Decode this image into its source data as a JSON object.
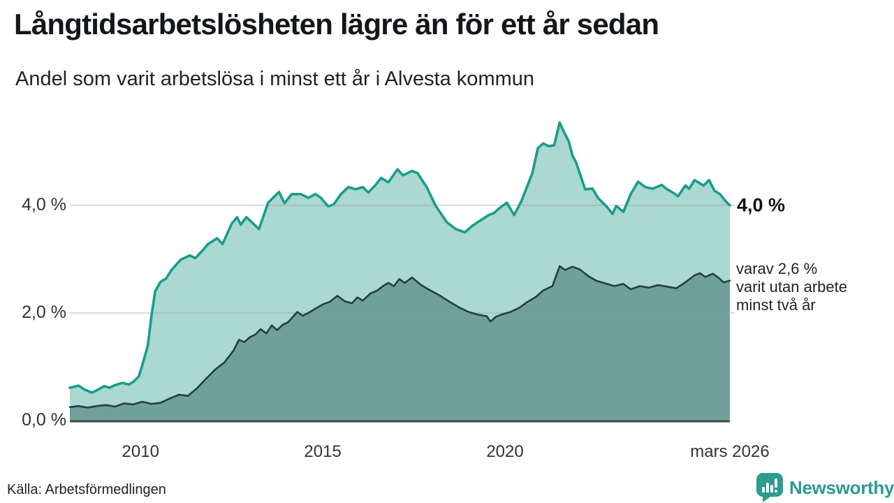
{
  "header": {
    "title": "Långtidsarbetslösheten lägre än för ett år sedan",
    "subtitle": "Andel som varit arbetslösa i minst ett år i Alvesta kommun"
  },
  "annotations": {
    "end_value_label": "4,0 %",
    "secondary_line1": "varav 2,6 %",
    "secondary_line2": "varit utan arbete",
    "secondary_line3": "minst två år"
  },
  "footer": {
    "source": "Källa: Arbetsförmedlingen",
    "brand_name": "Newsworthy",
    "brand_icon": "newsworthy-speech-bubble-bar-chart-icon"
  },
  "colors": {
    "series1_line": "#1a9c8c",
    "series1_fill": "#abd8d1",
    "series2_line": "#21403f",
    "series2_fill": "#6fa099",
    "gridline": "#9a9a9a",
    "baseline": "#3c4747",
    "brand_teal": "#2b9c8e",
    "text_dark": "#111111"
  },
  "chart_data": {
    "type": "area",
    "title": "Långtidsarbetslösheten lägre än för ett år sedan",
    "subtitle": "Andel som varit arbetslösa i minst ett år i Alvesta kommun",
    "unit": "percent",
    "source": "Arbetsförmedlingen",
    "x_axis": {
      "range_years": [
        2008.06,
        2026.17
      ],
      "ticks": [
        {
          "t": 2010,
          "label": "2010"
        },
        {
          "t": 2015,
          "label": "2015"
        },
        {
          "t": 2020,
          "label": "2020"
        },
        {
          "t": 2026.17,
          "label": "mars 2026"
        }
      ]
    },
    "y_axis": {
      "ticks": [
        {
          "v": 4,
          "label": "4,0 %"
        },
        {
          "v": 2,
          "label": "2,0 %"
        },
        {
          "v": 0,
          "label": "0,0 %"
        }
      ],
      "grid_values": [
        2,
        4
      ],
      "range": [
        0,
        5.6
      ]
    },
    "series": [
      {
        "name": "Andel arbetslösa minst ett år",
        "end_value": 4.0,
        "points": [
          [
            2008.06,
            0.61
          ],
          [
            2008.3,
            0.65
          ],
          [
            2008.45,
            0.58
          ],
          [
            2008.67,
            0.52
          ],
          [
            2008.85,
            0.58
          ],
          [
            2009.0,
            0.64
          ],
          [
            2009.15,
            0.61
          ],
          [
            2009.3,
            0.66
          ],
          [
            2009.5,
            0.7
          ],
          [
            2009.68,
            0.67
          ],
          [
            2009.8,
            0.72
          ],
          [
            2009.95,
            0.82
          ],
          [
            2010.05,
            1.03
          ],
          [
            2010.2,
            1.4
          ],
          [
            2010.3,
            1.95
          ],
          [
            2010.4,
            2.4
          ],
          [
            2010.55,
            2.58
          ],
          [
            2010.7,
            2.64
          ],
          [
            2010.85,
            2.8
          ],
          [
            2011.1,
            2.99
          ],
          [
            2011.35,
            3.07
          ],
          [
            2011.5,
            3.02
          ],
          [
            2011.7,
            3.16
          ],
          [
            2011.85,
            3.28
          ],
          [
            2012.1,
            3.39
          ],
          [
            2012.25,
            3.28
          ],
          [
            2012.5,
            3.66
          ],
          [
            2012.65,
            3.78
          ],
          [
            2012.75,
            3.64
          ],
          [
            2012.9,
            3.78
          ],
          [
            2013.05,
            3.69
          ],
          [
            2013.25,
            3.56
          ],
          [
            2013.5,
            4.05
          ],
          [
            2013.65,
            4.15
          ],
          [
            2013.8,
            4.25
          ],
          [
            2013.95,
            4.04
          ],
          [
            2014.15,
            4.21
          ],
          [
            2014.4,
            4.21
          ],
          [
            2014.6,
            4.14
          ],
          [
            2014.8,
            4.21
          ],
          [
            2014.95,
            4.14
          ],
          [
            2015.15,
            3.98
          ],
          [
            2015.3,
            4.02
          ],
          [
            2015.5,
            4.21
          ],
          [
            2015.7,
            4.34
          ],
          [
            2015.9,
            4.3
          ],
          [
            2016.1,
            4.34
          ],
          [
            2016.25,
            4.24
          ],
          [
            2016.45,
            4.38
          ],
          [
            2016.6,
            4.51
          ],
          [
            2016.8,
            4.43
          ],
          [
            2017.05,
            4.67
          ],
          [
            2017.2,
            4.56
          ],
          [
            2017.45,
            4.64
          ],
          [
            2017.6,
            4.6
          ],
          [
            2017.85,
            4.34
          ],
          [
            2018.1,
            3.99
          ],
          [
            2018.4,
            3.69
          ],
          [
            2018.65,
            3.56
          ],
          [
            2018.9,
            3.5
          ],
          [
            2019.1,
            3.62
          ],
          [
            2019.35,
            3.73
          ],
          [
            2019.55,
            3.82
          ],
          [
            2019.7,
            3.86
          ],
          [
            2019.85,
            3.95
          ],
          [
            2020.05,
            4.05
          ],
          [
            2020.25,
            3.82
          ],
          [
            2020.45,
            4.08
          ],
          [
            2020.6,
            4.34
          ],
          [
            2020.75,
            4.6
          ],
          [
            2020.9,
            5.06
          ],
          [
            2021.05,
            5.15
          ],
          [
            2021.2,
            5.1
          ],
          [
            2021.35,
            5.12
          ],
          [
            2021.5,
            5.54
          ],
          [
            2021.6,
            5.39
          ],
          [
            2021.75,
            5.19
          ],
          [
            2021.85,
            4.93
          ],
          [
            2021.95,
            4.8
          ],
          [
            2022.2,
            4.3
          ],
          [
            2022.4,
            4.31
          ],
          [
            2022.55,
            4.14
          ],
          [
            2022.8,
            3.97
          ],
          [
            2022.95,
            3.84
          ],
          [
            2023.05,
            3.99
          ],
          [
            2023.25,
            3.88
          ],
          [
            2023.45,
            4.21
          ],
          [
            2023.65,
            4.44
          ],
          [
            2023.85,
            4.34
          ],
          [
            2024.05,
            4.31
          ],
          [
            2024.3,
            4.38
          ],
          [
            2024.45,
            4.3
          ],
          [
            2024.6,
            4.24
          ],
          [
            2024.75,
            4.17
          ],
          [
            2024.95,
            4.37
          ],
          [
            2025.05,
            4.31
          ],
          [
            2025.2,
            4.47
          ],
          [
            2025.35,
            4.41
          ],
          [
            2025.45,
            4.37
          ],
          [
            2025.6,
            4.47
          ],
          [
            2025.75,
            4.27
          ],
          [
            2025.9,
            4.21
          ],
          [
            2026.05,
            4.08
          ],
          [
            2026.17,
            4.0
          ]
        ]
      },
      {
        "name": "Varav utan arbete minst två år",
        "end_value": 2.6,
        "points": [
          [
            2008.06,
            0.25
          ],
          [
            2008.3,
            0.27
          ],
          [
            2008.55,
            0.24
          ],
          [
            2008.8,
            0.27
          ],
          [
            2009.05,
            0.29
          ],
          [
            2009.3,
            0.26
          ],
          [
            2009.55,
            0.32
          ],
          [
            2009.8,
            0.3
          ],
          [
            2010.05,
            0.35
          ],
          [
            2010.3,
            0.31
          ],
          [
            2010.55,
            0.33
          ],
          [
            2010.8,
            0.41
          ],
          [
            2011.05,
            0.48
          ],
          [
            2011.3,
            0.46
          ],
          [
            2011.55,
            0.6
          ],
          [
            2011.8,
            0.78
          ],
          [
            2012.05,
            0.95
          ],
          [
            2012.3,
            1.08
          ],
          [
            2012.55,
            1.3
          ],
          [
            2012.7,
            1.5
          ],
          [
            2012.85,
            1.46
          ],
          [
            2013.0,
            1.55
          ],
          [
            2013.15,
            1.6
          ],
          [
            2013.3,
            1.7
          ],
          [
            2013.45,
            1.62
          ],
          [
            2013.6,
            1.77
          ],
          [
            2013.75,
            1.68
          ],
          [
            2013.9,
            1.78
          ],
          [
            2014.05,
            1.83
          ],
          [
            2014.3,
            2.02
          ],
          [
            2014.45,
            1.95
          ],
          [
            2014.6,
            2.0
          ],
          [
            2014.8,
            2.08
          ],
          [
            2015.0,
            2.16
          ],
          [
            2015.2,
            2.21
          ],
          [
            2015.4,
            2.32
          ],
          [
            2015.6,
            2.22
          ],
          [
            2015.8,
            2.18
          ],
          [
            2015.95,
            2.29
          ],
          [
            2016.1,
            2.23
          ],
          [
            2016.3,
            2.36
          ],
          [
            2016.5,
            2.42
          ],
          [
            2016.65,
            2.5
          ],
          [
            2016.8,
            2.56
          ],
          [
            2016.95,
            2.5
          ],
          [
            2017.1,
            2.63
          ],
          [
            2017.25,
            2.56
          ],
          [
            2017.45,
            2.66
          ],
          [
            2017.7,
            2.52
          ],
          [
            2017.95,
            2.42
          ],
          [
            2018.2,
            2.33
          ],
          [
            2018.5,
            2.2
          ],
          [
            2018.75,
            2.1
          ],
          [
            2019.0,
            2.02
          ],
          [
            2019.25,
            1.97
          ],
          [
            2019.5,
            1.94
          ],
          [
            2019.6,
            1.84
          ],
          [
            2019.75,
            1.93
          ],
          [
            2019.95,
            1.98
          ],
          [
            2020.15,
            2.02
          ],
          [
            2020.4,
            2.1
          ],
          [
            2020.6,
            2.2
          ],
          [
            2020.85,
            2.3
          ],
          [
            2021.05,
            2.42
          ],
          [
            2021.3,
            2.5
          ],
          [
            2021.5,
            2.87
          ],
          [
            2021.65,
            2.8
          ],
          [
            2021.85,
            2.86
          ],
          [
            2022.05,
            2.81
          ],
          [
            2022.3,
            2.68
          ],
          [
            2022.5,
            2.6
          ],
          [
            2022.75,
            2.55
          ],
          [
            2023.0,
            2.5
          ],
          [
            2023.25,
            2.54
          ],
          [
            2023.45,
            2.44
          ],
          [
            2023.7,
            2.5
          ],
          [
            2023.95,
            2.47
          ],
          [
            2024.2,
            2.52
          ],
          [
            2024.45,
            2.49
          ],
          [
            2024.7,
            2.46
          ],
          [
            2024.95,
            2.57
          ],
          [
            2025.2,
            2.7
          ],
          [
            2025.35,
            2.74
          ],
          [
            2025.5,
            2.67
          ],
          [
            2025.7,
            2.73
          ],
          [
            2025.85,
            2.66
          ],
          [
            2026.0,
            2.57
          ],
          [
            2026.17,
            2.6
          ]
        ]
      }
    ]
  }
}
